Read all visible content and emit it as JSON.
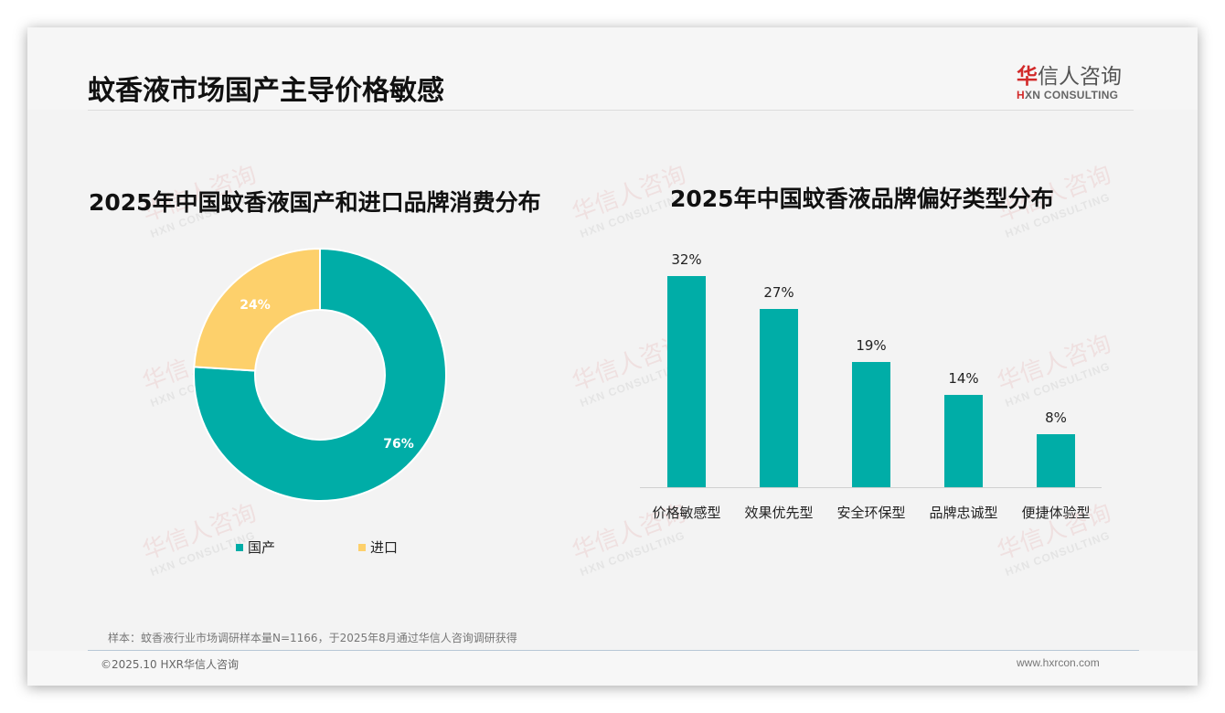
{
  "page": {
    "title": "蚊香液市场国产主导价格敏感",
    "logo": {
      "cn_first": "华",
      "cn_rest": "信人咨询",
      "en_first": "H",
      "en_rest": "XN CONSULTING"
    },
    "watermark": {
      "cn": "华信人咨询",
      "en": "HXN CONSULTING"
    }
  },
  "footer": {
    "note": "样本：蚊香液行业市场调研样本量N=1166，于2025年8月通过华信人咨询调研获得",
    "copyright": "©2025.10 HXR华信人咨询",
    "website": "www.hxrcon.com"
  },
  "colors": {
    "teal": "#00ada7",
    "yellow": "#fdd06b"
  },
  "chart_data": [
    {
      "type": "pie",
      "variant": "donut",
      "title": "2025年中国蚊香液国产和进口品牌消费分布",
      "categories": [
        "国产",
        "进口"
      ],
      "values": [
        76,
        24
      ],
      "labels": [
        "76%",
        "24%"
      ],
      "colors": [
        "#00ada7",
        "#fdd06b"
      ],
      "legend_position": "bottom"
    },
    {
      "type": "bar",
      "title": "2025年中国蚊香液品牌偏好类型分布",
      "categories": [
        "价格敏感型",
        "效果优先型",
        "安全环保型",
        "品牌忠诚型",
        "便捷体验型"
      ],
      "values": [
        32,
        27,
        19,
        14,
        8
      ],
      "labels": [
        "32%",
        "27%",
        "19%",
        "14%",
        "8%"
      ],
      "unit": "%",
      "xlabel": "",
      "ylabel": "",
      "grid": false,
      "color": "#00ada7"
    }
  ]
}
